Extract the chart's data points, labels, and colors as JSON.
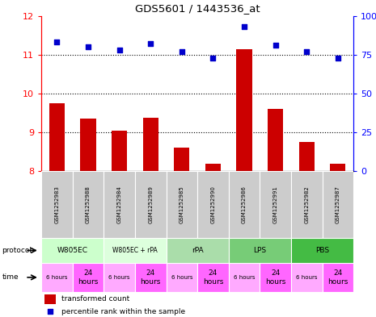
{
  "title": "GDS5601 / 1443536_at",
  "samples": [
    "GSM1252983",
    "GSM1252988",
    "GSM1252984",
    "GSM1252989",
    "GSM1252985",
    "GSM1252990",
    "GSM1252986",
    "GSM1252991",
    "GSM1252982",
    "GSM1252987"
  ],
  "bar_values": [
    9.75,
    9.35,
    9.05,
    9.38,
    8.6,
    8.2,
    11.15,
    9.6,
    8.75,
    8.2
  ],
  "dot_values": [
    83,
    80,
    78,
    82,
    77,
    73,
    93,
    81,
    77,
    73
  ],
  "ylim_left": [
    8,
    12
  ],
  "ylim_right": [
    0,
    100
  ],
  "yticks_left": [
    8,
    9,
    10,
    11,
    12
  ],
  "yticks_right": [
    0,
    25,
    50,
    75,
    100
  ],
  "bar_color": "#cc0000",
  "dot_color": "#0000cc",
  "bar_baseline": 8,
  "sample_bg": "#cccccc",
  "protocols": [
    {
      "label": "W805EC",
      "start": 0,
      "end": 2,
      "color": "#ccffcc"
    },
    {
      "label": "W805EC + rPA",
      "start": 2,
      "end": 4,
      "color": "#ddffdd"
    },
    {
      "label": "rPA",
      "start": 4,
      "end": 6,
      "color": "#aaddaa"
    },
    {
      "label": "LPS",
      "start": 6,
      "end": 8,
      "color": "#77cc77"
    },
    {
      "label": "PBS",
      "start": 8,
      "end": 10,
      "color": "#44bb44"
    }
  ],
  "time_labels": [
    "6 hours",
    "24\nhours",
    "6 hours",
    "24\nhours",
    "6 hours",
    "24\nhours",
    "6 hours",
    "24\nhours",
    "6 hours",
    "24\nhours"
  ],
  "time_color_6h": "#ffaaff",
  "time_color_24h": "#ff66ff",
  "legend_bar_label": "transformed count",
  "legend_dot_label": "percentile rank within the sample"
}
